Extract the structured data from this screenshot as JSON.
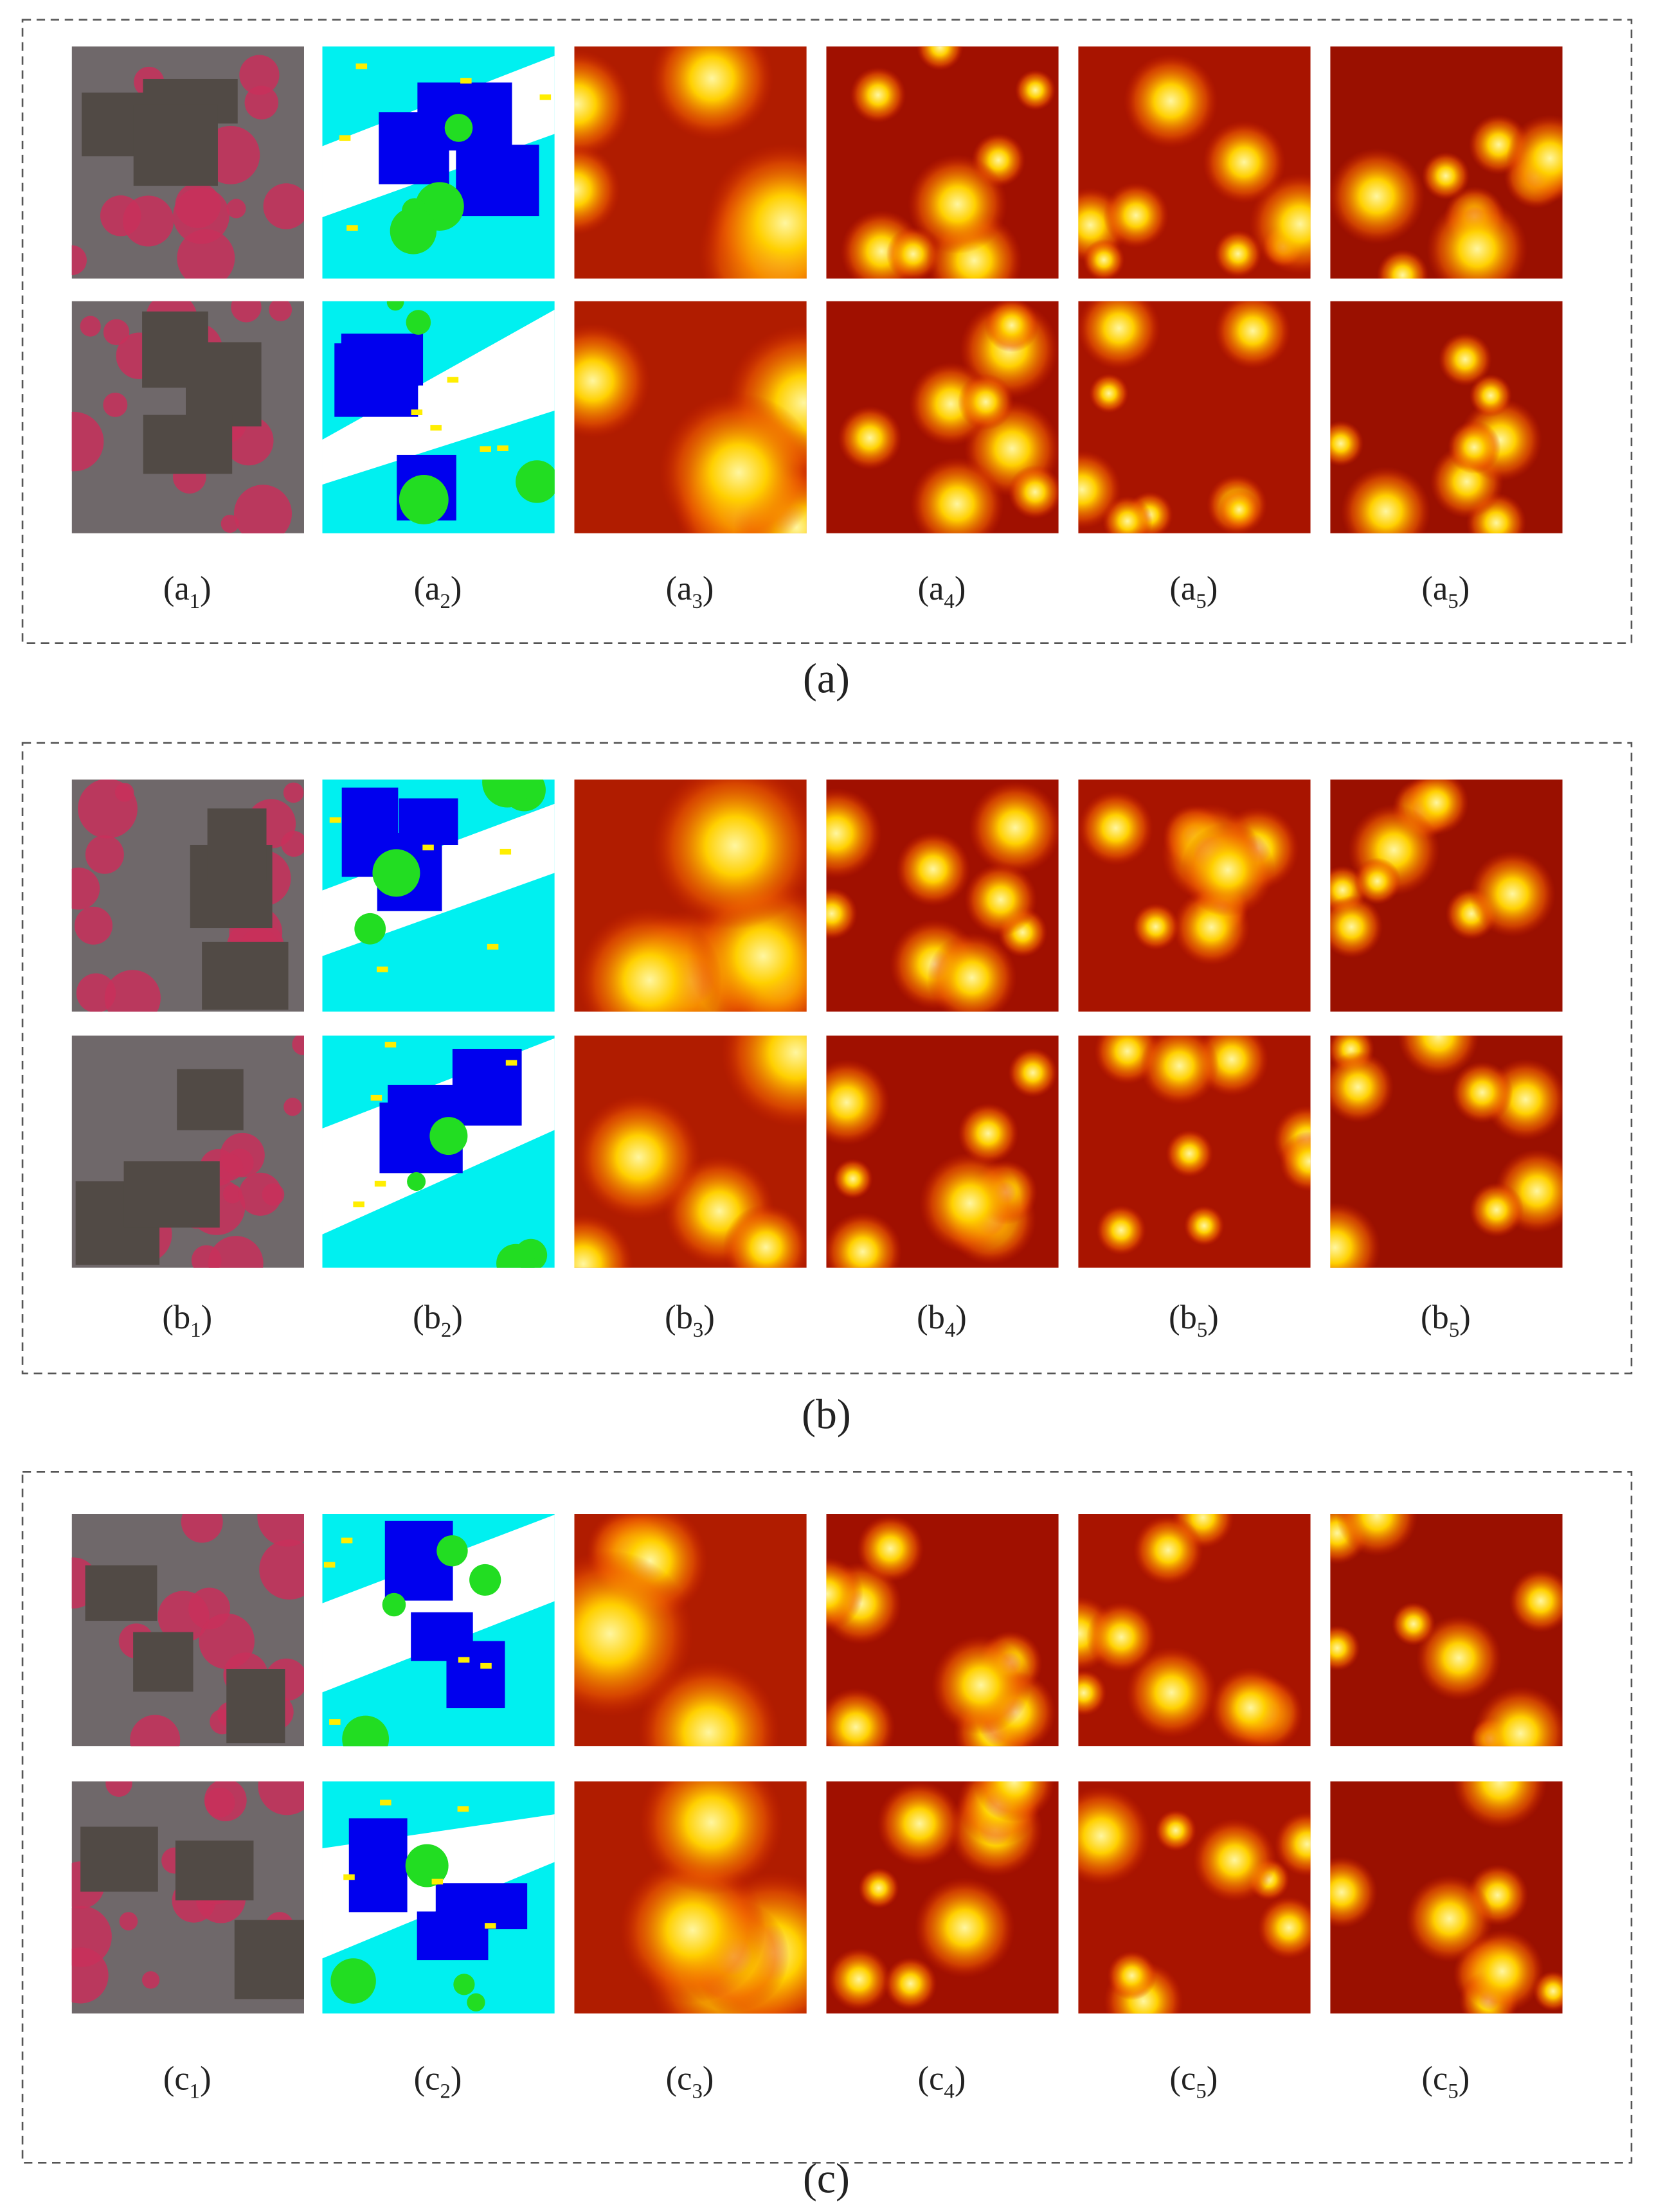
{
  "panels": [
    {
      "caption": "(a)",
      "labels": [
        {
          "open": "(a",
          "sub": "1",
          "close": ")"
        },
        {
          "open": "(a",
          "sub": "2",
          "close": ")"
        },
        {
          "open": "(a",
          "sub": "3",
          "close": ")"
        },
        {
          "open": "(a",
          "sub": "4",
          "close": ")"
        },
        {
          "open": "(a",
          "sub": "5",
          "close": ")"
        },
        {
          "open": "(a",
          "sub": "5",
          "close": ")"
        }
      ]
    },
    {
      "caption": "(b)",
      "labels": [
        {
          "open": "(b",
          "sub": "1",
          "close": ")"
        },
        {
          "open": "(b",
          "sub": "2",
          "close": ")"
        },
        {
          "open": "(b",
          "sub": "3",
          "close": ")"
        },
        {
          "open": "(b",
          "sub": "4",
          "close": ")"
        },
        {
          "open": "(b",
          "sub": "5",
          "close": ")"
        },
        {
          "open": "(b",
          "sub": "5",
          "close": ")"
        }
      ]
    },
    {
      "caption": "(c)",
      "labels": [
        {
          "open": "(c",
          "sub": "1",
          "close": ")"
        },
        {
          "open": "(c",
          "sub": "2",
          "close": ")"
        },
        {
          "open": "(c",
          "sub": "3",
          "close": ")"
        },
        {
          "open": "(c",
          "sub": "4",
          "close": ")"
        },
        {
          "open": "(c",
          "sub": "5",
          "close": ")"
        },
        {
          "open": "(c",
          "sub": "5",
          "close": ")"
        }
      ]
    }
  ]
}
